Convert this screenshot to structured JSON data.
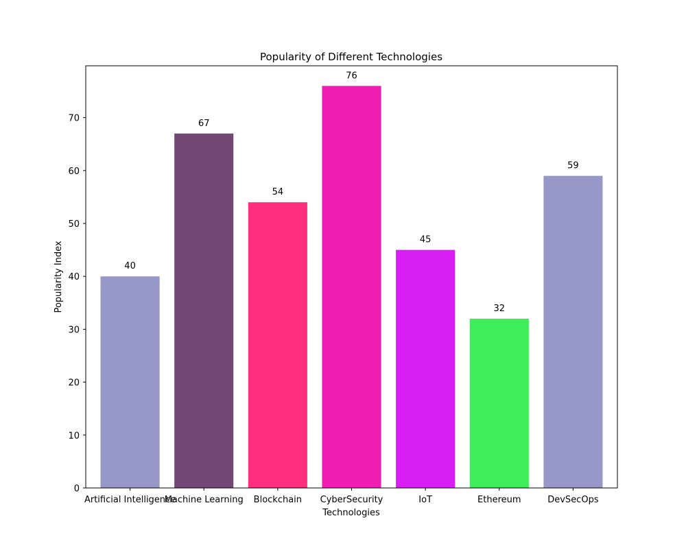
{
  "chart_data": {
    "type": "bar",
    "title": "Popularity of Different Technologies",
    "xlabel": "Technologies",
    "ylabel": "Popularity Index",
    "categories": [
      "Artificial Intelligence",
      "Machine Learning",
      "Blockchain",
      "CyberSecurity",
      "IoT",
      "Ethereum",
      "DevSecOps"
    ],
    "values": [
      40,
      67,
      54,
      76,
      45,
      32,
      59
    ],
    "colors": [
      "#9698c7",
      "#714874",
      "#ff2e7f",
      "#ef1eb3",
      "#d91ef5",
      "#3eed5a",
      "#9698c7"
    ],
    "ylim": [
      0,
      79.8
    ],
    "yticks": [
      0,
      10,
      20,
      30,
      40,
      50,
      60,
      70
    ],
    "grid": false,
    "data_labels": true
  }
}
